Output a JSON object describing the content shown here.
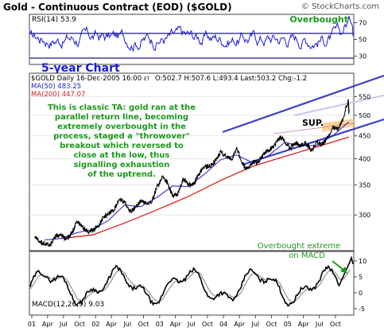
{
  "header": {
    "title": "Gold - Continuous Contract (EOD) ($GOLD)",
    "copyright": "© StockCharts.com"
  },
  "chart_data": [
    {
      "type": "line",
      "panel": "rsi",
      "label": "RSI(14) 53.9",
      "annotation": "Overbought",
      "ylim": [
        20,
        80
      ],
      "y_ticks": [
        30,
        50,
        70
      ],
      "series": [
        {
          "name": "RSI(14)",
          "last": 53.9
        }
      ],
      "overlay_text": "5-year Chart"
    },
    {
      "type": "line",
      "panel": "price",
      "header_line": {
        "symbol": "$GOLD Daily 16-Dec-2005 16:00",
        "tz": "ET",
        "values": "O:502.7 H:507.6 L:493.4 Last:503.2 Chg:-1.2"
      },
      "legend": [
        "MA(50) 483.25",
        "MA(200) 447.07"
      ],
      "y_scale": "log",
      "ylim": [
        250,
        620
      ],
      "y_ticks": [
        300,
        350,
        400,
        450,
        500,
        550
      ],
      "x_ticks": [
        "01",
        "Apr",
        "Jul",
        "Oct",
        "02",
        "Apr",
        "Jul",
        "Oct",
        "03",
        "Apr",
        "Jul",
        "Oct",
        "04",
        "Apr",
        "Jul",
        "Oct",
        "05",
        "Apr",
        "Jul",
        "Oct"
      ],
      "series": [
        {
          "name": "$GOLD",
          "points": [
            [
              "2001-01",
              268
            ],
            [
              "2001-02",
              262
            ],
            [
              "2001-03",
              258
            ],
            [
              "2001-04",
              257
            ],
            [
              "2001-05",
              270
            ],
            [
              "2001-06",
              270
            ],
            [
              "2001-07",
              265
            ],
            [
              "2001-08",
              273
            ],
            [
              "2001-09",
              290
            ],
            [
              "2001-10",
              282
            ],
            [
              "2001-11",
              275
            ],
            [
              "2001-12",
              278
            ],
            [
              "2002-01",
              283
            ],
            [
              "2002-02",
              298
            ],
            [
              "2002-03",
              302
            ],
            [
              "2002-04",
              308
            ],
            [
              "2002-05",
              325
            ],
            [
              "2002-06",
              320
            ],
            [
              "2002-07",
              305
            ],
            [
              "2002-08",
              312
            ],
            [
              "2002-09",
              322
            ],
            [
              "2002-10",
              318
            ],
            [
              "2002-11",
              320
            ],
            [
              "2002-12",
              345
            ],
            [
              "2003-01",
              365
            ],
            [
              "2003-02",
              352
            ],
            [
              "2003-03",
              330
            ],
            [
              "2003-04",
              335
            ],
            [
              "2003-05",
              362
            ],
            [
              "2003-06",
              350
            ],
            [
              "2003-07",
              352
            ],
            [
              "2003-08",
              372
            ],
            [
              "2003-09",
              385
            ],
            [
              "2003-10",
              385
            ],
            [
              "2003-11",
              396
            ],
            [
              "2003-12",
              415
            ],
            [
              "2004-01",
              405
            ],
            [
              "2004-02",
              397
            ],
            [
              "2004-03",
              425
            ],
            [
              "2004-04",
              390
            ],
            [
              "2004-05",
              380
            ],
            [
              "2004-06",
              393
            ],
            [
              "2004-07",
              392
            ],
            [
              "2004-08",
              410
            ],
            [
              "2004-09",
              418
            ],
            [
              "2004-10",
              427
            ],
            [
              "2004-11",
              447
            ],
            [
              "2004-12",
              437
            ],
            [
              "2005-01",
              423
            ],
            [
              "2005-02",
              434
            ],
            [
              "2005-03",
              428
            ],
            [
              "2005-04",
              434
            ],
            [
              "2005-05",
              417
            ],
            [
              "2005-06",
              436
            ],
            [
              "2005-07",
              430
            ],
            [
              "2005-08",
              445
            ],
            [
              "2005-09",
              470
            ],
            [
              "2005-10",
              466
            ],
            [
              "2005-11",
              495
            ],
            [
              "2005-12-12",
              540
            ],
            [
              "2005-12-16",
              503
            ]
          ]
        },
        {
          "name": "MA(50)",
          "last": 483.25,
          "points": [
            [
              "2001-03",
              264
            ],
            [
              "2001-06",
              266
            ],
            [
              "2001-09",
              274
            ],
            [
              "2001-12",
              279
            ],
            [
              "2002-03",
              292
            ],
            [
              "2002-06",
              316
            ],
            [
              "2002-09",
              313
            ],
            [
              "2002-12",
              328
            ],
            [
              "2003-03",
              348
            ],
            [
              "2003-06",
              347
            ],
            [
              "2003-09",
              370
            ],
            [
              "2003-12",
              398
            ],
            [
              "2004-03",
              408
            ],
            [
              "2004-06",
              392
            ],
            [
              "2004-09",
              407
            ],
            [
              "2004-12",
              435
            ],
            [
              "2005-03",
              428
            ],
            [
              "2005-06",
              428
            ],
            [
              "2005-09",
              450
            ],
            [
              "2005-12-16",
              483
            ]
          ]
        },
        {
          "name": "MA(200)",
          "last": 447.07,
          "points": [
            [
              "2001-06",
              266
            ],
            [
              "2001-12",
              271
            ],
            [
              "2002-06",
              288
            ],
            [
              "2002-12",
              308
            ],
            [
              "2003-06",
              330
            ],
            [
              "2003-12",
              358
            ],
            [
              "2004-06",
              385
            ],
            [
              "2004-12",
              405
            ],
            [
              "2005-06",
              425
            ],
            [
              "2005-12-16",
              447
            ]
          ]
        }
      ],
      "annotations": [
        "This is classic TA: gold ran at the",
        "parallel return line, becoming",
        "extremely overbought in the",
        "process, staged a \"throwover\"",
        "breakout which reversed to",
        "close at the low, thus",
        "signalling exhaustion",
        "of the uptrend."
      ],
      "sup_label": "SUP."
    },
    {
      "type": "line",
      "panel": "macd",
      "label": "MACD(12,26,9) 9.03",
      "annotation": [
        "Overbought extreme",
        "on MACD"
      ],
      "ylim": [
        -7,
        13
      ],
      "y_ticks": [
        -5,
        0,
        5,
        10
      ],
      "series": [
        {
          "name": "MACD(12,26,9)",
          "last": 9.03
        }
      ]
    }
  ]
}
